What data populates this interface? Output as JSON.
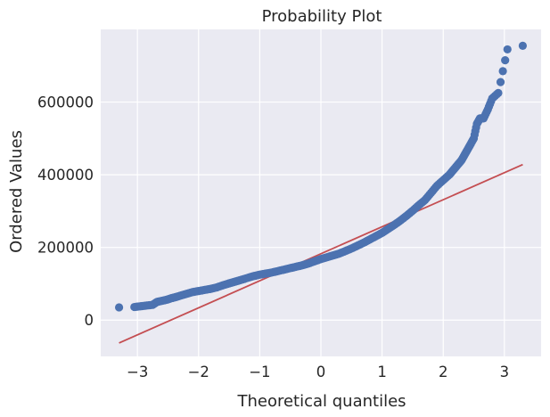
{
  "chart_data": {
    "type": "scatter",
    "title": "Probability Plot",
    "xlabel": "Theoretical quantiles",
    "ylabel": "Ordered Values",
    "xlim": [
      -3.6,
      3.6
    ],
    "ylim": [
      -100000,
      800000
    ],
    "grid": true,
    "x_ticks": [
      -3,
      -2,
      -1,
      0,
      1,
      2,
      3
    ],
    "x_tick_labels": [
      "−3",
      "−2",
      "−1",
      "0",
      "1",
      "2",
      "3"
    ],
    "y_ticks": [
      0,
      200000,
      400000,
      600000
    ],
    "y_tick_labels": [
      "0",
      "200000",
      "400000",
      "600000"
    ],
    "colors": {
      "points": "#4c72b0",
      "fit_line": "#c44e52",
      "background": "#eaeaf2"
    },
    "fit_line": {
      "x": [
        -3.3,
        3.3
      ],
      "y": [
        -63000,
        428000
      ]
    },
    "points": {
      "x": [
        -3.3,
        -3.05,
        -2.95,
        -2.85,
        -2.75,
        -2.68,
        -2.6,
        -2.52,
        -2.45,
        -2.38,
        -2.3,
        -2.2,
        -2.1,
        -2.0,
        -1.9,
        -1.8,
        -1.7,
        -1.6,
        -1.5,
        -1.4,
        -1.3,
        -1.2,
        -1.1,
        -1.0,
        -0.9,
        -0.8,
        -0.7,
        -0.6,
        -0.5,
        -0.4,
        -0.3,
        -0.2,
        -0.1,
        0.0,
        0.1,
        0.2,
        0.3,
        0.4,
        0.5,
        0.6,
        0.7,
        0.8,
        0.9,
        1.0,
        1.1,
        1.2,
        1.3,
        1.4,
        1.5,
        1.6,
        1.7,
        1.8,
        1.9,
        2.0,
        2.1,
        2.15,
        2.2,
        2.25,
        2.3,
        2.35,
        2.4,
        2.45,
        2.5,
        2.55,
        2.6,
        2.66,
        2.73,
        2.8,
        2.9,
        3.05,
        3.3
      ],
      "y": [
        35000,
        36000,
        38000,
        40000,
        42000,
        50000,
        53000,
        56000,
        60000,
        63000,
        67000,
        72000,
        77000,
        80000,
        83000,
        86000,
        90000,
        96000,
        101000,
        106000,
        111000,
        116000,
        121000,
        125000,
        128000,
        131000,
        135000,
        139000,
        143000,
        147000,
        151000,
        156000,
        162000,
        168000,
        173000,
        178000,
        183000,
        190000,
        197000,
        205000,
        213000,
        222000,
        231000,
        240000,
        251000,
        262000,
        274000,
        287000,
        301000,
        316000,
        330000,
        350000,
        370000,
        385000,
        400000,
        410000,
        420000,
        430000,
        440000,
        455000,
        470000,
        485000,
        500000,
        540000,
        555000,
        555000,
        580000,
        610000,
        625000,
        745000,
        755000
      ]
    }
  }
}
